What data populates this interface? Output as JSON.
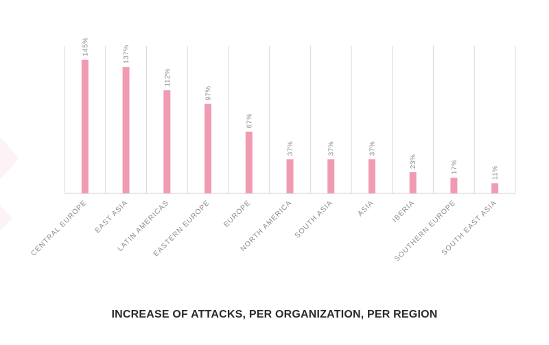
{
  "chart_data": {
    "type": "bar",
    "title": "INCREASE OF ATTACKS, PER ORGANIZATION, PER REGION",
    "categories": [
      "CENTRAL EUROPE",
      "EAST ASIA",
      "LATIN AMERICAS",
      "EASTERN EUROPE",
      "EUROPE",
      "NORTH AMERICA",
      "SOUTH ASIA",
      "ASIA",
      "IBERIA",
      "SOUTHERN EUROPE",
      "SOUTH EAST ASIA"
    ],
    "values": [
      145,
      137,
      112,
      97,
      67,
      37,
      37,
      37,
      23,
      17,
      11
    ],
    "labels": [
      "145%",
      "137%",
      "112%",
      "97%",
      "67%",
      "37%",
      "37%",
      "37%",
      "23%",
      "17%",
      "11%"
    ],
    "ylim": [
      0,
      160
    ],
    "grid": "vertical category separators",
    "legend": "none",
    "colors": {
      "bar": "#f19bb3",
      "grid": "#d9d9d9",
      "text": "#8c8c8c",
      "title": "#2a2a2a"
    }
  }
}
